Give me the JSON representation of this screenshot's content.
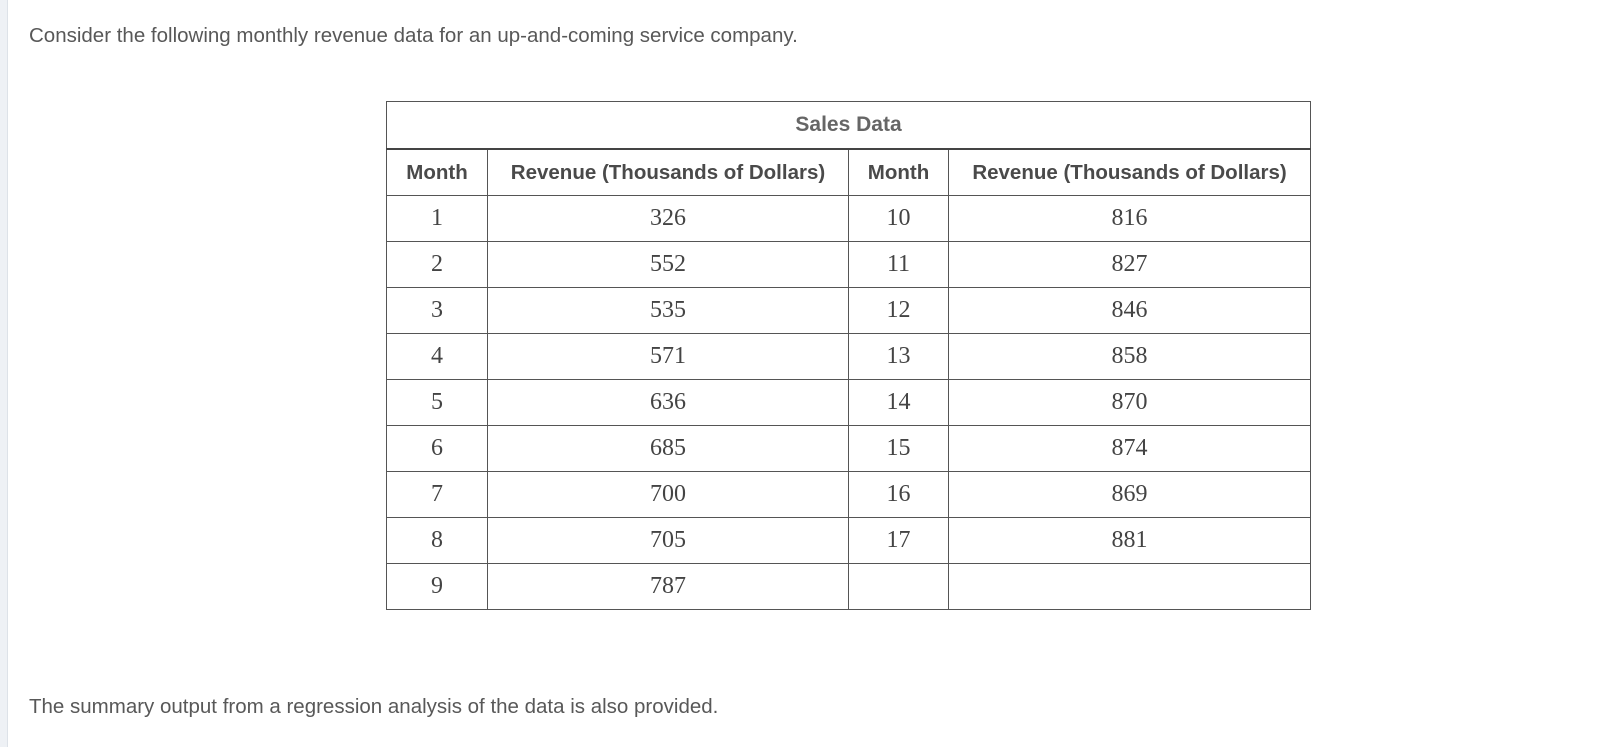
{
  "intro": "Consider the following monthly revenue data for an up-and-coming service company.",
  "table": {
    "caption": "Sales Data",
    "headers": [
      "Month",
      "Revenue (Thousands of Dollars)",
      "Month",
      "Revenue (Thousands of Dollars)"
    ],
    "rows": [
      [
        "1",
        "326",
        "10",
        "816"
      ],
      [
        "2",
        "552",
        "11",
        "827"
      ],
      [
        "3",
        "535",
        "12",
        "846"
      ],
      [
        "4",
        "571",
        "13",
        "858"
      ],
      [
        "5",
        "636",
        "14",
        "870"
      ],
      [
        "6",
        "685",
        "15",
        "874"
      ],
      [
        "7",
        "700",
        "16",
        "869"
      ],
      [
        "8",
        "705",
        "17",
        "881"
      ],
      [
        "9",
        "787",
        "",
        ""
      ]
    ]
  },
  "outro": "The summary output from a regression analysis of the data is also provided."
}
